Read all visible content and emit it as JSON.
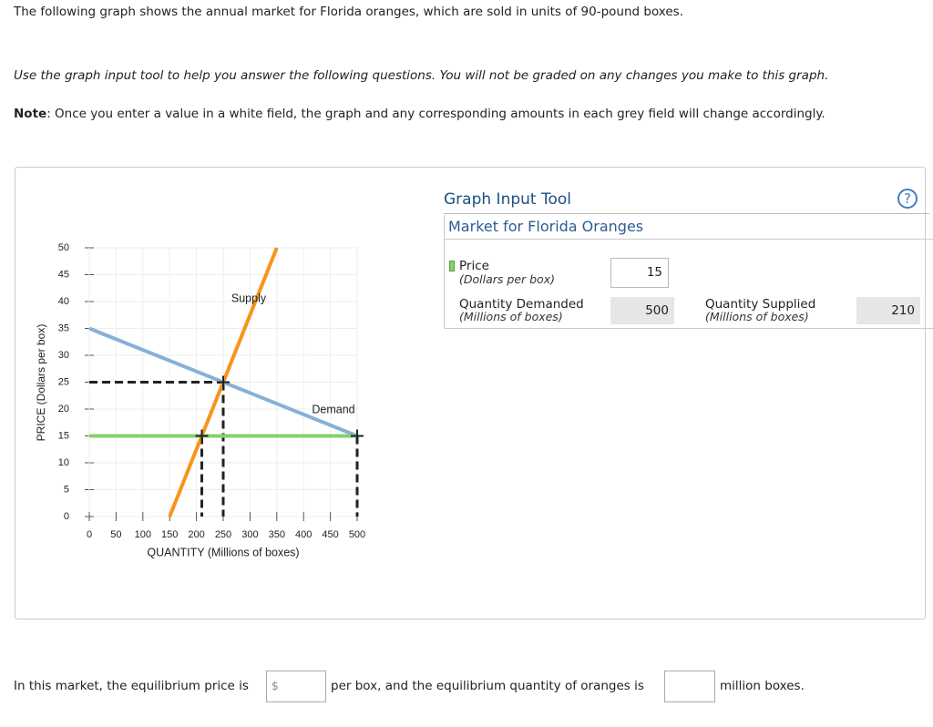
{
  "intro": "The following graph shows the annual market for Florida oranges, which are sold in units of 90-pound boxes.",
  "instructions": "Use the graph input tool to help you answer the following questions. You will not be graded on any changes you make to this graph.",
  "note": {
    "label": "Note",
    "text": ": Once you enter a value in a white field, the graph and any corresponding amounts in each grey field will change accordingly."
  },
  "chart_data": {
    "type": "line",
    "xlabel": "QUANTITY (Millions of boxes)",
    "ylabel": "PRICE (Dollars per box)",
    "xlim": [
      0,
      500
    ],
    "ylim": [
      0,
      50
    ],
    "xticks": [
      0,
      50,
      100,
      150,
      200,
      250,
      300,
      350,
      400,
      450,
      500
    ],
    "yticks": [
      0,
      5,
      10,
      15,
      20,
      25,
      30,
      35,
      40,
      45,
      50
    ],
    "grid": true,
    "series": [
      {
        "name": "Supply",
        "color": "#f7941d",
        "x": [
          150,
          350
        ],
        "y": [
          0,
          50
        ]
      },
      {
        "name": "Demand",
        "color": "#89afd7",
        "x": [
          0,
          500
        ],
        "y": [
          35,
          15
        ]
      }
    ],
    "price_line_color": "#84d36c",
    "equilibrium_guide": {
      "x": 250,
      "y": 25
    }
  },
  "tool": {
    "title": "Graph Input Tool",
    "help": "?",
    "subtitle": "Market for Florida Oranges",
    "price": {
      "label": "Price",
      "unit": "(Dollars per box)",
      "value": 15
    },
    "quantity_demanded": {
      "label": "Quantity Demanded",
      "unit": "(Millions of boxes)",
      "value": 500
    },
    "quantity_supplied": {
      "label": "Quantity Supplied",
      "unit": "(Millions of boxes)",
      "value": 210
    }
  },
  "question": {
    "part1": "In this market, the equilibrium price is",
    "currency": "$",
    "part2": "per box, and the equilibrium quantity of oranges is",
    "part3": "million boxes."
  }
}
